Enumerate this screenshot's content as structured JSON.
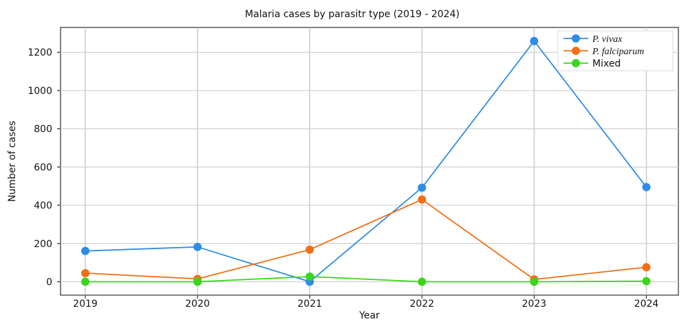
{
  "chart_data": {
    "type": "line",
    "title": "Malaria cases by parasitr type (2019 - 2024)",
    "xlabel": "Year",
    "ylabel": "Number of cases",
    "categories": [
      "2019",
      "2020",
      "2021",
      "2022",
      "2023",
      "2024"
    ],
    "ylim": [
      -70,
      1330
    ],
    "y_ticks": [
      "0",
      "200",
      "400",
      "600",
      "800",
      "1000",
      "1200"
    ],
    "grid": true,
    "legend_position": "top-right",
    "series": [
      {
        "name": "P. vivax",
        "color": "#2f8ce6",
        "values": [
          161,
          182,
          0,
          492,
          1259,
          495
        ]
      },
      {
        "name": "P. falciparum",
        "color": "#f26f16",
        "values": [
          45,
          15,
          168,
          430,
          12,
          76
        ]
      },
      {
        "name": "Mixed",
        "color": "#39d61c",
        "values": [
          0,
          0,
          27,
          0,
          0,
          3
        ]
      }
    ]
  }
}
